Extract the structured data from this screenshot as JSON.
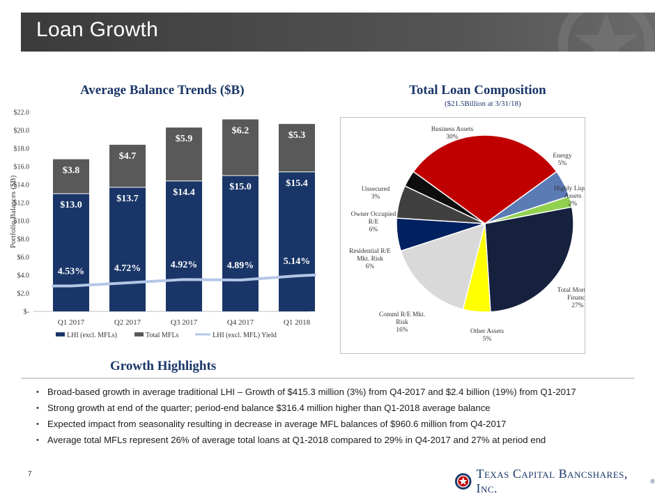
{
  "slide": {
    "title": "Loan Growth",
    "page_number": "7",
    "logo_text": "Texas Capital Bancshares, Inc.",
    "logo_mark": "®"
  },
  "left_chart_title": "Average Balance Trends ($B)",
  "right_chart_title": "Total Loan Composition",
  "right_chart_subtitle": "($21.5Billion at 3/31/18)",
  "growth_title": "Growth Highlights",
  "bullets": [
    "Broad-based growth in average traditional LHI – Growth of $415.3 million (3%) from Q4-2017 and $2.4 billion (19%) from Q1-2017",
    "Strong growth at end of the quarter; period-end balance $316.4 million higher than Q1-2018 average balance",
    "Expected impact from seasonality resulting in decrease in average MFL balances of $960.6 million from Q4‑2017",
    "Average total MFLs represent 26% of average total loans at Q1-2018 compared to 29% in Q4-2017 and 27% at period end"
  ],
  "chart_data": [
    {
      "type": "bar",
      "stacked": true,
      "title": "Average Balance Trends ($B)",
      "ylabel": "Portfolio Balances ($B)",
      "ylim": [
        0,
        22
      ],
      "yticks": [
        0,
        2,
        4,
        6,
        8,
        10,
        12,
        14,
        16,
        18,
        20,
        22
      ],
      "ytick_labels": [
        "$-",
        "$2.0",
        "$4.0",
        "$6.0",
        "$8.0",
        "$10.0",
        "$12.0",
        "$14.0",
        "$16.0",
        "$18.0",
        "$20.0",
        "$22.0"
      ],
      "categories": [
        "Q1 2017",
        "Q2 2017",
        "Q3 2017",
        "Q4 2017",
        "Q1 2018"
      ],
      "series": [
        {
          "name": "LHI (excl. MFLs)",
          "values": [
            13.0,
            13.7,
            14.4,
            15.0,
            15.4
          ],
          "labels": [
            "$13.0",
            "$13.7",
            "$14.4",
            "$15.0",
            "$15.4"
          ],
          "color": "#1a3668"
        },
        {
          "name": "Total MFLs",
          "values": [
            3.8,
            4.7,
            5.9,
            6.2,
            5.3
          ],
          "labels": [
            "$3.8",
            "$4.7",
            "$5.9",
            "$6.2",
            "$5.3"
          ],
          "color": "#595959"
        }
      ],
      "line_series": {
        "name": "LHI (excl. MFL) Yield",
        "values": [
          4.53,
          4.72,
          4.92,
          4.89,
          5.14
        ],
        "labels": [
          "4.53%",
          "4.72%",
          "4.92%",
          "4.89%",
          "5.14%"
        ],
        "color": "#b4c7e7"
      },
      "legend": [
        "LHI (excl. MFLs)",
        "Total MFLs",
        "LHI (excl. MFL) Yield"
      ],
      "legend_position": "bottom"
    },
    {
      "type": "pie",
      "title": "Total Loan Composition",
      "subtitle": "($21.5Billion at 3/31/18)",
      "slices": [
        {
          "name": "Business Assets",
          "label": "30%",
          "value": 30,
          "color": "#c00000"
        },
        {
          "name": "Energy",
          "label": "5%",
          "value": 5,
          "color": "#5b7bb5"
        },
        {
          "name": "Highly Liquid Assets",
          "label": "2%",
          "value": 2,
          "color": "#92d050"
        },
        {
          "name": "Total Mortgage Finance",
          "label": "27%",
          "value": 27,
          "color": "#16213e"
        },
        {
          "name": "Other Assets",
          "label": "5%",
          "value": 5,
          "color": "#ffff00"
        },
        {
          "name": "Comml R/E Mkt. Risk",
          "label": "16%",
          "value": 16,
          "color": "#d9d9d9"
        },
        {
          "name": "Residential R/E Mkt. Risk",
          "label": "6%",
          "value": 6,
          "color": "#002060"
        },
        {
          "name": "Owner Occupied R/E",
          "label": "6%",
          "value": 6,
          "color": "#404040"
        },
        {
          "name": "Unsecured",
          "label": "3%",
          "value": 3,
          "color": "#0d0d0d"
        }
      ],
      "slice_label_lines": [
        [
          "Business Assets",
          "30%"
        ],
        [
          "Energy",
          "5%"
        ],
        [
          "Highly Liquid",
          "Assets",
          "2%"
        ],
        [
          "Total Mortgage",
          "Finance",
          "27%"
        ],
        [
          "Other Assets",
          "5%"
        ],
        [
          "Comml R/E Mkt.",
          "Risk",
          "16%"
        ],
        [
          "Residential R/E",
          "Mkt. Risk",
          "6%"
        ],
        [
          "Owner Occupied",
          "R/E",
          "6%"
        ],
        [
          "Unsecured",
          "3%"
        ]
      ]
    }
  ]
}
